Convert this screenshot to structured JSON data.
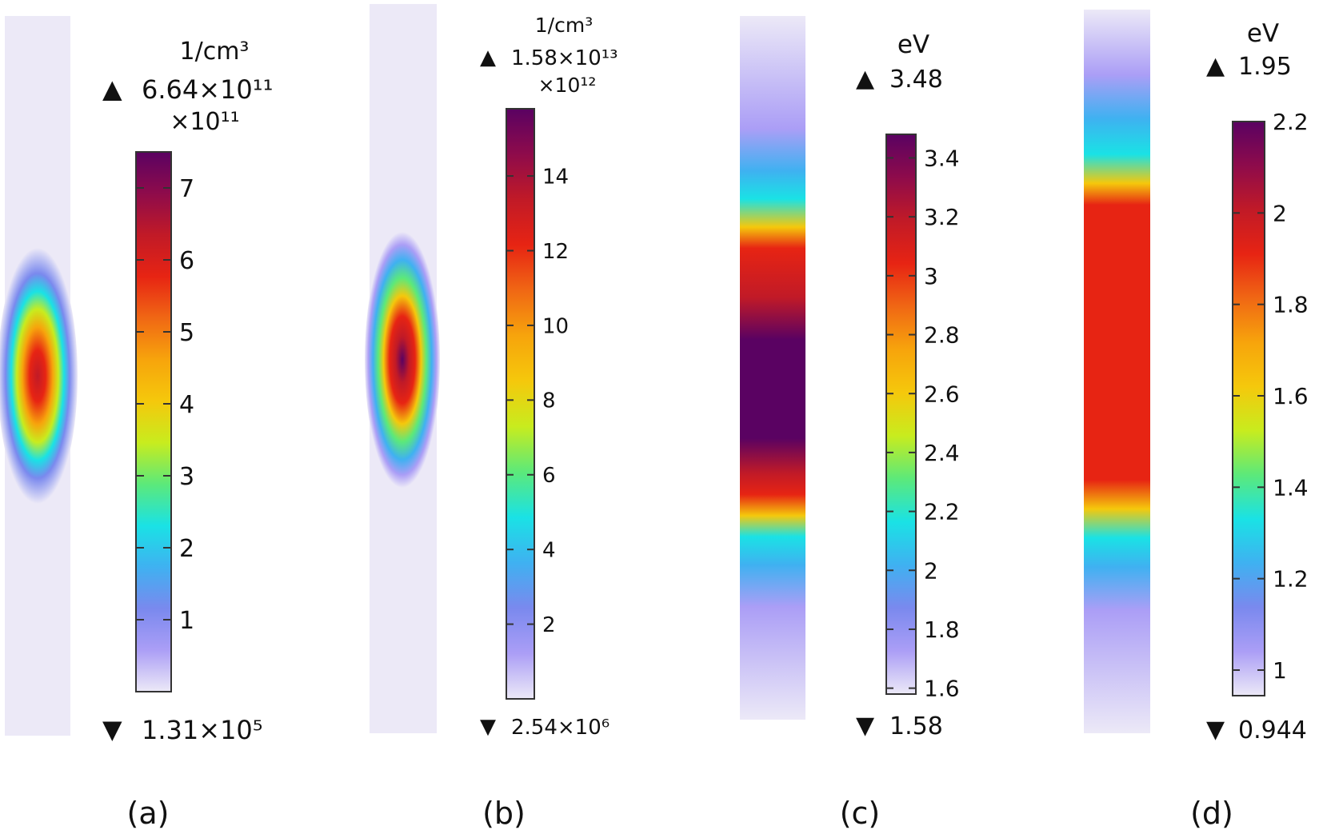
{
  "colors": {
    "colormap": [
      "#ece9f7",
      "#ab9ef6",
      "#7a89ee",
      "#3fb1f1",
      "#1ae2e5",
      "#5ce97a",
      "#c8ec1e",
      "#f5c80c",
      "#f7a40c",
      "#f06714",
      "#e72413",
      "#c11a27",
      "#8e0b4b",
      "#5a0262"
    ],
    "background": "#ffffff",
    "text": "#111111"
  },
  "chart_data": [
    {
      "type": "heatmap",
      "label": "(a)",
      "unit": "1/cm³",
      "max_marker": "6.64×10¹¹",
      "min_marker": "1.31×10⁵",
      "scale_factor": "×10¹¹",
      "colorbar_range": [
        0,
        7.5
      ],
      "max_value": 6.64,
      "min_value": 1.3e-06,
      "ticks": [
        1,
        2,
        3,
        4,
        5,
        6,
        7
      ],
      "tick_labels": [
        "1",
        "2",
        "3",
        "4",
        "5",
        "6",
        "7"
      ],
      "profile": "narrow gaussian spot centered along strip"
    },
    {
      "type": "heatmap",
      "label": "(b)",
      "unit": "1/cm³",
      "max_marker": "1.58×10¹³",
      "min_marker": "2.54×10⁶",
      "scale_factor": "×10¹²",
      "colorbar_range": [
        0,
        15.8
      ],
      "max_value": 15.8,
      "min_value": 2.54e-06,
      "ticks": [
        2,
        4,
        6,
        8,
        10,
        12,
        14
      ],
      "tick_labels": [
        "2",
        "4",
        "6",
        "8",
        "10",
        "12",
        "14"
      ],
      "profile": "narrow gaussian spot centered along strip"
    },
    {
      "type": "heatmap",
      "label": "(c)",
      "unit": "eV",
      "max_marker": "3.48",
      "min_marker": "1.58",
      "scale_factor": "",
      "colorbar_range": [
        1.58,
        3.48
      ],
      "max_value": 3.48,
      "min_value": 1.58,
      "ticks": [
        1.6,
        1.8,
        2,
        2.2,
        2.4,
        2.6,
        2.8,
        3,
        3.2,
        3.4
      ],
      "tick_labels": [
        "1.6",
        "1.8",
        "2",
        "2.2",
        "2.4",
        "2.6",
        "2.8",
        "3",
        "3.2",
        "3.4"
      ],
      "profile": "broad flat-top band centered along strip"
    },
    {
      "type": "heatmap",
      "label": "(d)",
      "unit": "eV",
      "max_marker": "1.95",
      "min_marker": "0.944",
      "scale_factor": "",
      "colorbar_range": [
        0.944,
        2.2
      ],
      "max_value": 1.95,
      "min_value": 0.944,
      "ticks": [
        1,
        1.2,
        1.4,
        1.6,
        1.8,
        2,
        2.2
      ],
      "tick_labels": [
        "1",
        "1.2",
        "1.4",
        "1.6",
        "1.8",
        "2",
        "2.2"
      ],
      "profile": "broad flat-top band centered along strip"
    }
  ]
}
